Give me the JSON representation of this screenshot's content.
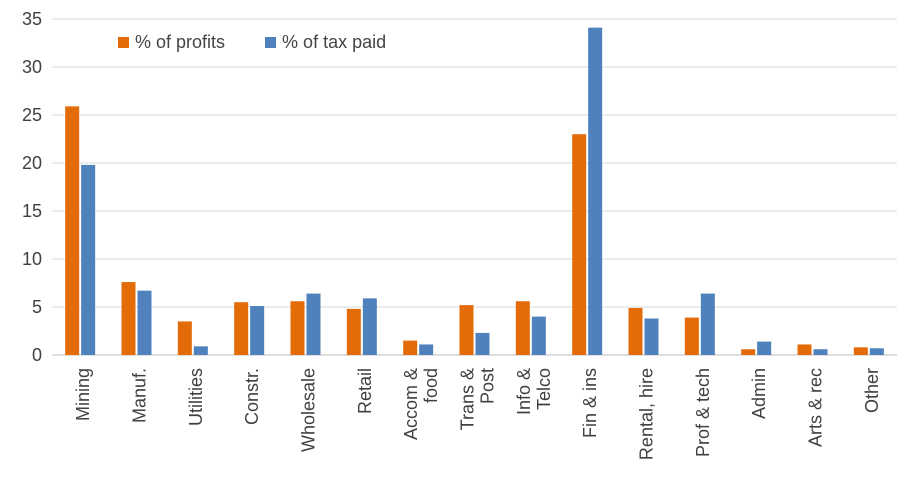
{
  "chart_data": {
    "type": "bar",
    "categories": [
      "Mining",
      "Manuf.",
      "Utilities",
      "Constr.",
      "Wholesale",
      "Retail",
      "Accom & food",
      "Trans & Post",
      "Info & Telco",
      "Fin & ins",
      "Rental, hire",
      "Prof  & tech",
      "Admin",
      "Arts & rec",
      "Other"
    ],
    "category_lines": [
      [
        "Mining"
      ],
      [
        "Manuf."
      ],
      [
        "Utilities"
      ],
      [
        "Constr."
      ],
      [
        "Wholesale"
      ],
      [
        "Retail"
      ],
      [
        "Accom &",
        "food"
      ],
      [
        "Trans &",
        "Post"
      ],
      [
        "Info &",
        "Telco"
      ],
      [
        "Fin & ins"
      ],
      [
        "Rental, hire"
      ],
      [
        "Prof  & tech"
      ],
      [
        "Admin"
      ],
      [
        "Arts & rec"
      ],
      [
        "Other"
      ]
    ],
    "series": [
      {
        "name": "% of profits",
        "color": "#E36C09",
        "values": [
          25.9,
          7.6,
          3.5,
          5.5,
          5.6,
          4.8,
          1.5,
          5.2,
          5.6,
          23.0,
          4.9,
          3.9,
          0.6,
          1.1,
          0.8
        ]
      },
      {
        "name": "% of tax paid",
        "color": "#4F81BD",
        "values": [
          19.8,
          6.7,
          0.9,
          5.1,
          6.4,
          5.9,
          1.1,
          2.3,
          4.0,
          34.1,
          3.8,
          6.4,
          1.4,
          0.6,
          0.7
        ]
      }
    ],
    "y_ticks": [
      "0",
      "5",
      "10",
      "15",
      "20",
      "25",
      "30",
      "35"
    ],
    "ylim": [
      0,
      35
    ],
    "grid": true,
    "legend_position": "top-left"
  }
}
